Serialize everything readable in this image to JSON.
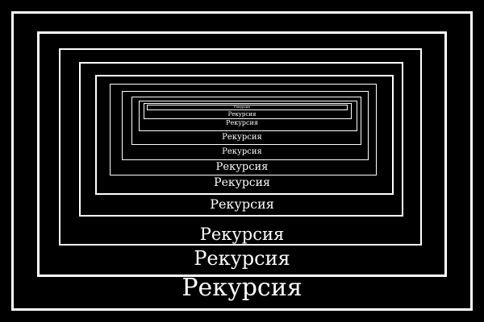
{
  "poster": {
    "caption": "Рекурсия",
    "level_count": 11,
    "colors": {
      "background": "#000000",
      "foreground": "#ffffff"
    }
  }
}
